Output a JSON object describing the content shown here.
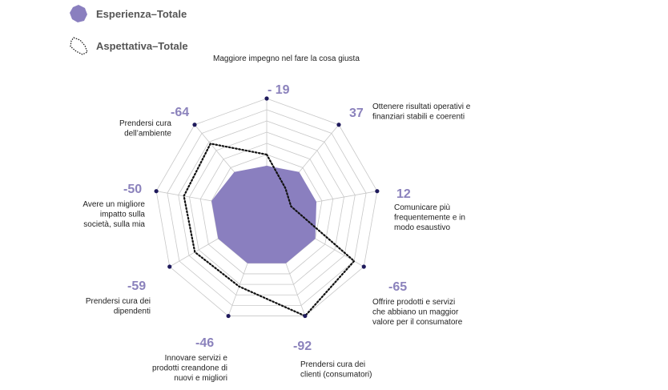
{
  "legend": {
    "experience": "Esperienza–Totale",
    "expectation": "Aspettativa–Totale"
  },
  "colors": {
    "experience_fill": "#8a7fbf",
    "expectation_line": "#111111",
    "grid": "#c8c8c8",
    "value_text": "#8b82bc",
    "marker": "#1f1a5c"
  },
  "chart_data": {
    "type": "radar",
    "title": "",
    "categories": [
      "Maggiore impegno nel fare la cosa giusta",
      "Ottenere risultati operativi e finanziari stabili e coerenti",
      "Comunicare più frequentemente e in modo esaustivo",
      "Offrire prodotti e servizi che abbiano un maggior valore per il consumatore",
      "Prendersi cura dei clienti (consumatori)",
      "Innovare servizi e prodotti creandone di nuovi e migliori",
      "Prendersi cura dei dipendenti",
      "Avere un migliore impatto sulla società, sulla mia",
      "Prendersi cura dell’ambiente"
    ],
    "category_lines": [
      [
        "Maggiore impegno nel fare la cosa giusta"
      ],
      [
        "Ottenere risultati operativi e",
        "finanziari stabili e coerenti"
      ],
      [
        "Comunicare più",
        "frequentemente e in",
        "modo esaustivo"
      ],
      [
        "Offrire prodotti e servizi",
        "che abbiano un maggior",
        "valore per il consumatore"
      ],
      [
        "Prendersi cura dei",
        "clienti (consumatori)"
      ],
      [
        "Innovare servizi e",
        "prodotti creandone di",
        "nuovi e migliori"
      ],
      [
        "Prendersi cura dei",
        "dipendenti"
      ],
      [
        "Avere un migliore",
        "impatto sulla",
        "società, sulla mia"
      ],
      [
        "Prendersi cura",
        "dell’ambiente"
      ]
    ],
    "value_labels": [
      "- 19",
      "37",
      "12",
      "-65",
      "-92",
      "-46",
      "-59",
      "-50",
      "-64"
    ],
    "scale_max": 10,
    "grid_levels": 10,
    "series": [
      {
        "name": "Esperienza–Totale",
        "values": [
          4.0,
          4.5,
          4.5,
          5.0,
          5.0,
          5.0,
          5.0,
          5.0,
          4.5
        ],
        "style": "filled"
      },
      {
        "name": "Aspettativa–Totale",
        "values": [
          5.0,
          2.6,
          2.2,
          9.0,
          10.0,
          7.2,
          7.4,
          7.5,
          7.8
        ],
        "style": "dotted"
      }
    ]
  }
}
